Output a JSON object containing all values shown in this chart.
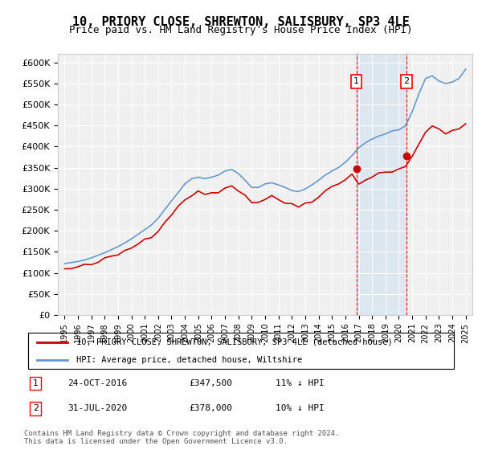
{
  "title": "10, PRIORY CLOSE, SHREWTON, SALISBURY, SP3 4LE",
  "subtitle": "Price paid vs. HM Land Registry's House Price Index (HPI)",
  "ylabel_ticks": [
    "£0",
    "£50K",
    "£100K",
    "£150K",
    "£200K",
    "£250K",
    "£300K",
    "£350K",
    "£400K",
    "£450K",
    "£500K",
    "£550K",
    "£600K"
  ],
  "ylim": [
    0,
    620000
  ],
  "yticks": [
    0,
    50000,
    100000,
    150000,
    200000,
    250000,
    300000,
    350000,
    400000,
    450000,
    500000,
    550000,
    600000
  ],
  "background_color": "#ffffff",
  "plot_bg_color": "#f0f0f0",
  "grid_color": "#ffffff",
  "red_line_color": "#cc0000",
  "blue_line_color": "#6699cc",
  "sale1_date": 2016.82,
  "sale1_price": 347500,
  "sale2_date": 2020.58,
  "sale2_price": 378000,
  "sale1_label": "1",
  "sale2_label": "2",
  "legend_red": "10, PRIORY CLOSE, SHREWTON, SALISBURY, SP3 4LE (detached house)",
  "legend_blue": "HPI: Average price, detached house, Wiltshire",
  "annotation1": "1    24-OCT-2016    £347,500    11% ↓ HPI",
  "annotation2": "2    31-JUL-2020    £378,000    10% ↓ HPI",
  "footer": "Contains HM Land Registry data © Crown copyright and database right 2024.\nThis data is licensed under the Open Government Licence v3.0.",
  "shade_color": "#cce0f0"
}
